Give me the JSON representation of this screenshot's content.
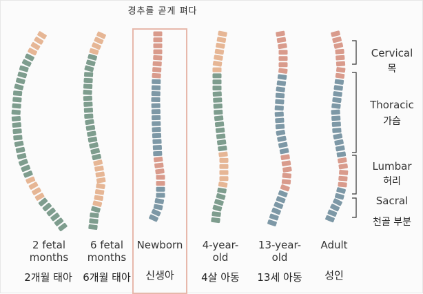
{
  "title": "경추를 곧게 펴다",
  "colors": {
    "cervical": "#e6b695",
    "thoracic": "#7e9d8e",
    "lumbar": "#e6b695",
    "sacral": "#7d98a6",
    "newborn_cervical": "#d99b8c",
    "newborn_lumbar": "#d99b8c",
    "highlight_box": "#e7b8ab"
  },
  "stages": [
    {
      "label_en": "2 fetal\nmonths",
      "label_ko": "2개월 태아"
    },
    {
      "label_en": "6 fetal\nmonths",
      "label_ko": "6개월 태아"
    },
    {
      "label_en": "Newborn",
      "label_ko": "신생아"
    },
    {
      "label_en": "4-year-\nold",
      "label_ko": "4살 아동"
    },
    {
      "label_en": "13-year-\nold",
      "label_ko": "13세 아동"
    },
    {
      "label_en": "Adult",
      "label_ko": "성인"
    }
  ],
  "regions": [
    {
      "label_en": "Cervical",
      "label_ko": "목"
    },
    {
      "label_en": "Thoracic",
      "label_ko": "가슴"
    },
    {
      "label_en": "Lumbar",
      "label_ko": "허리"
    },
    {
      "label_en": "Sacral",
      "label_ko": "천골 부분"
    }
  ]
}
